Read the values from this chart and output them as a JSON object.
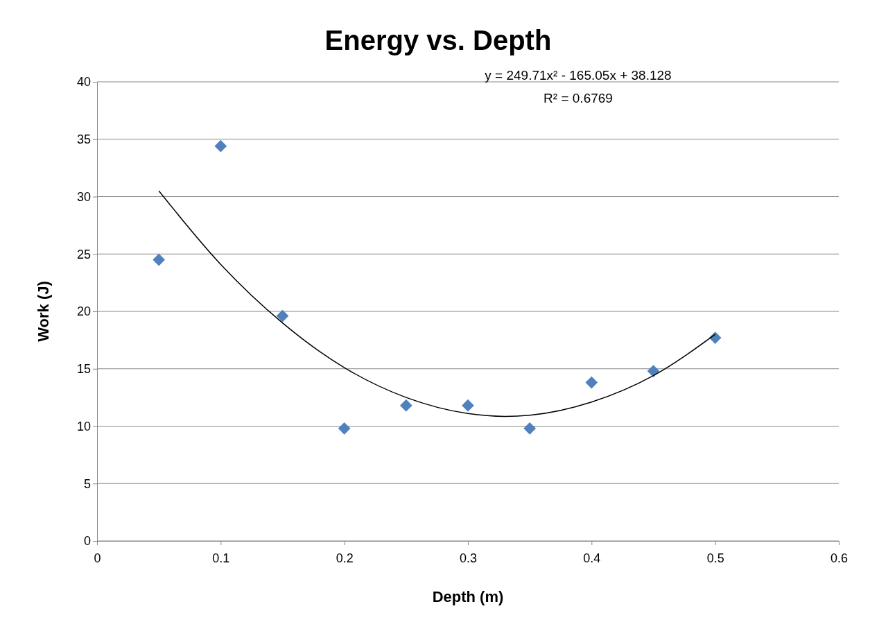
{
  "chart_data": {
    "type": "scatter",
    "title": "Energy vs. Depth",
    "xlabel": "Depth (m)",
    "ylabel": "Work (J)",
    "annotations": [
      "y = 249.71x² - 165.05x + 38.128",
      "R² = 0.6769"
    ],
    "xlim": [
      0,
      0.6
    ],
    "xticks": [
      0,
      0.1,
      0.2,
      0.3,
      0.4,
      0.5,
      0.6
    ],
    "ylim": [
      0,
      40
    ],
    "yticks": [
      0,
      5,
      10,
      15,
      20,
      25,
      30,
      35,
      40
    ],
    "grid": "y",
    "series": [
      {
        "color": "#4f81bd",
        "marker": "diamond",
        "x": [
          0.05,
          0.1,
          0.15,
          0.2,
          0.25,
          0.3,
          0.35,
          0.4,
          0.45,
          0.5
        ],
        "values": [
          24.5,
          34.4,
          19.6,
          9.8,
          11.8,
          11.8,
          9.8,
          13.8,
          14.8,
          17.7
        ]
      },
      {
        "type": "line",
        "color": "#000000",
        "line_style": "solid",
        "marker": "none",
        "x": [
          0.05,
          0.1,
          0.15,
          0.2,
          0.25,
          0.3,
          0.33,
          0.35,
          0.4,
          0.45,
          0.5
        ],
        "values": [
          30.5,
          24.1,
          19.0,
          15.1,
          12.5,
          11.1,
          10.85,
          10.95,
          12.1,
          14.4,
          18.0
        ]
      }
    ]
  }
}
